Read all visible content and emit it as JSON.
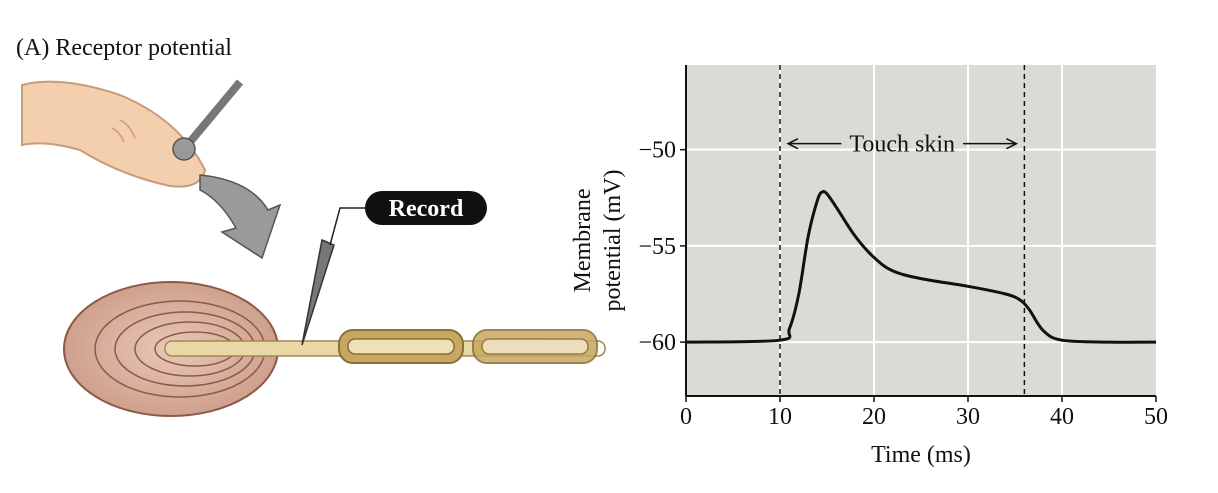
{
  "panel_label": "(A)  Receptor potential",
  "record_label": "Record",
  "chart_data": {
    "type": "line",
    "annotation": "Touch skin",
    "y_label_lines": [
      "Membrane",
      "potential (mV)"
    ],
    "x_label": "Time (ms)",
    "x": [
      0,
      10,
      11,
      12,
      13,
      14,
      14.5,
      15,
      16,
      18,
      20,
      22,
      25,
      30,
      34,
      35.5,
      36.5,
      38,
      40,
      45,
      50
    ],
    "series": [
      {
        "color": "#111111",
        "values": [
          -60,
          -59.9,
          -59.3,
          -57.5,
          -54.5,
          -52.6,
          -52.2,
          -52.3,
          -53,
          -54.5,
          -55.6,
          -56.3,
          -56.7,
          -57.1,
          -57.5,
          -57.8,
          -58.3,
          -59.4,
          -59.9,
          -60,
          -60
        ]
      }
    ],
    "xlim": [
      0,
      50
    ],
    "ylim": [
      -62.8,
      -45.6
    ],
    "xticks": [
      0,
      10,
      20,
      30,
      40,
      50
    ],
    "yticks": [
      {
        "value": -50,
        "label": "−50"
      },
      {
        "value": -55,
        "label": "−55"
      },
      {
        "value": -60,
        "label": "−60"
      }
    ],
    "vlines": [
      10,
      36
    ],
    "grid": true,
    "background": "#d9dcd5"
  }
}
